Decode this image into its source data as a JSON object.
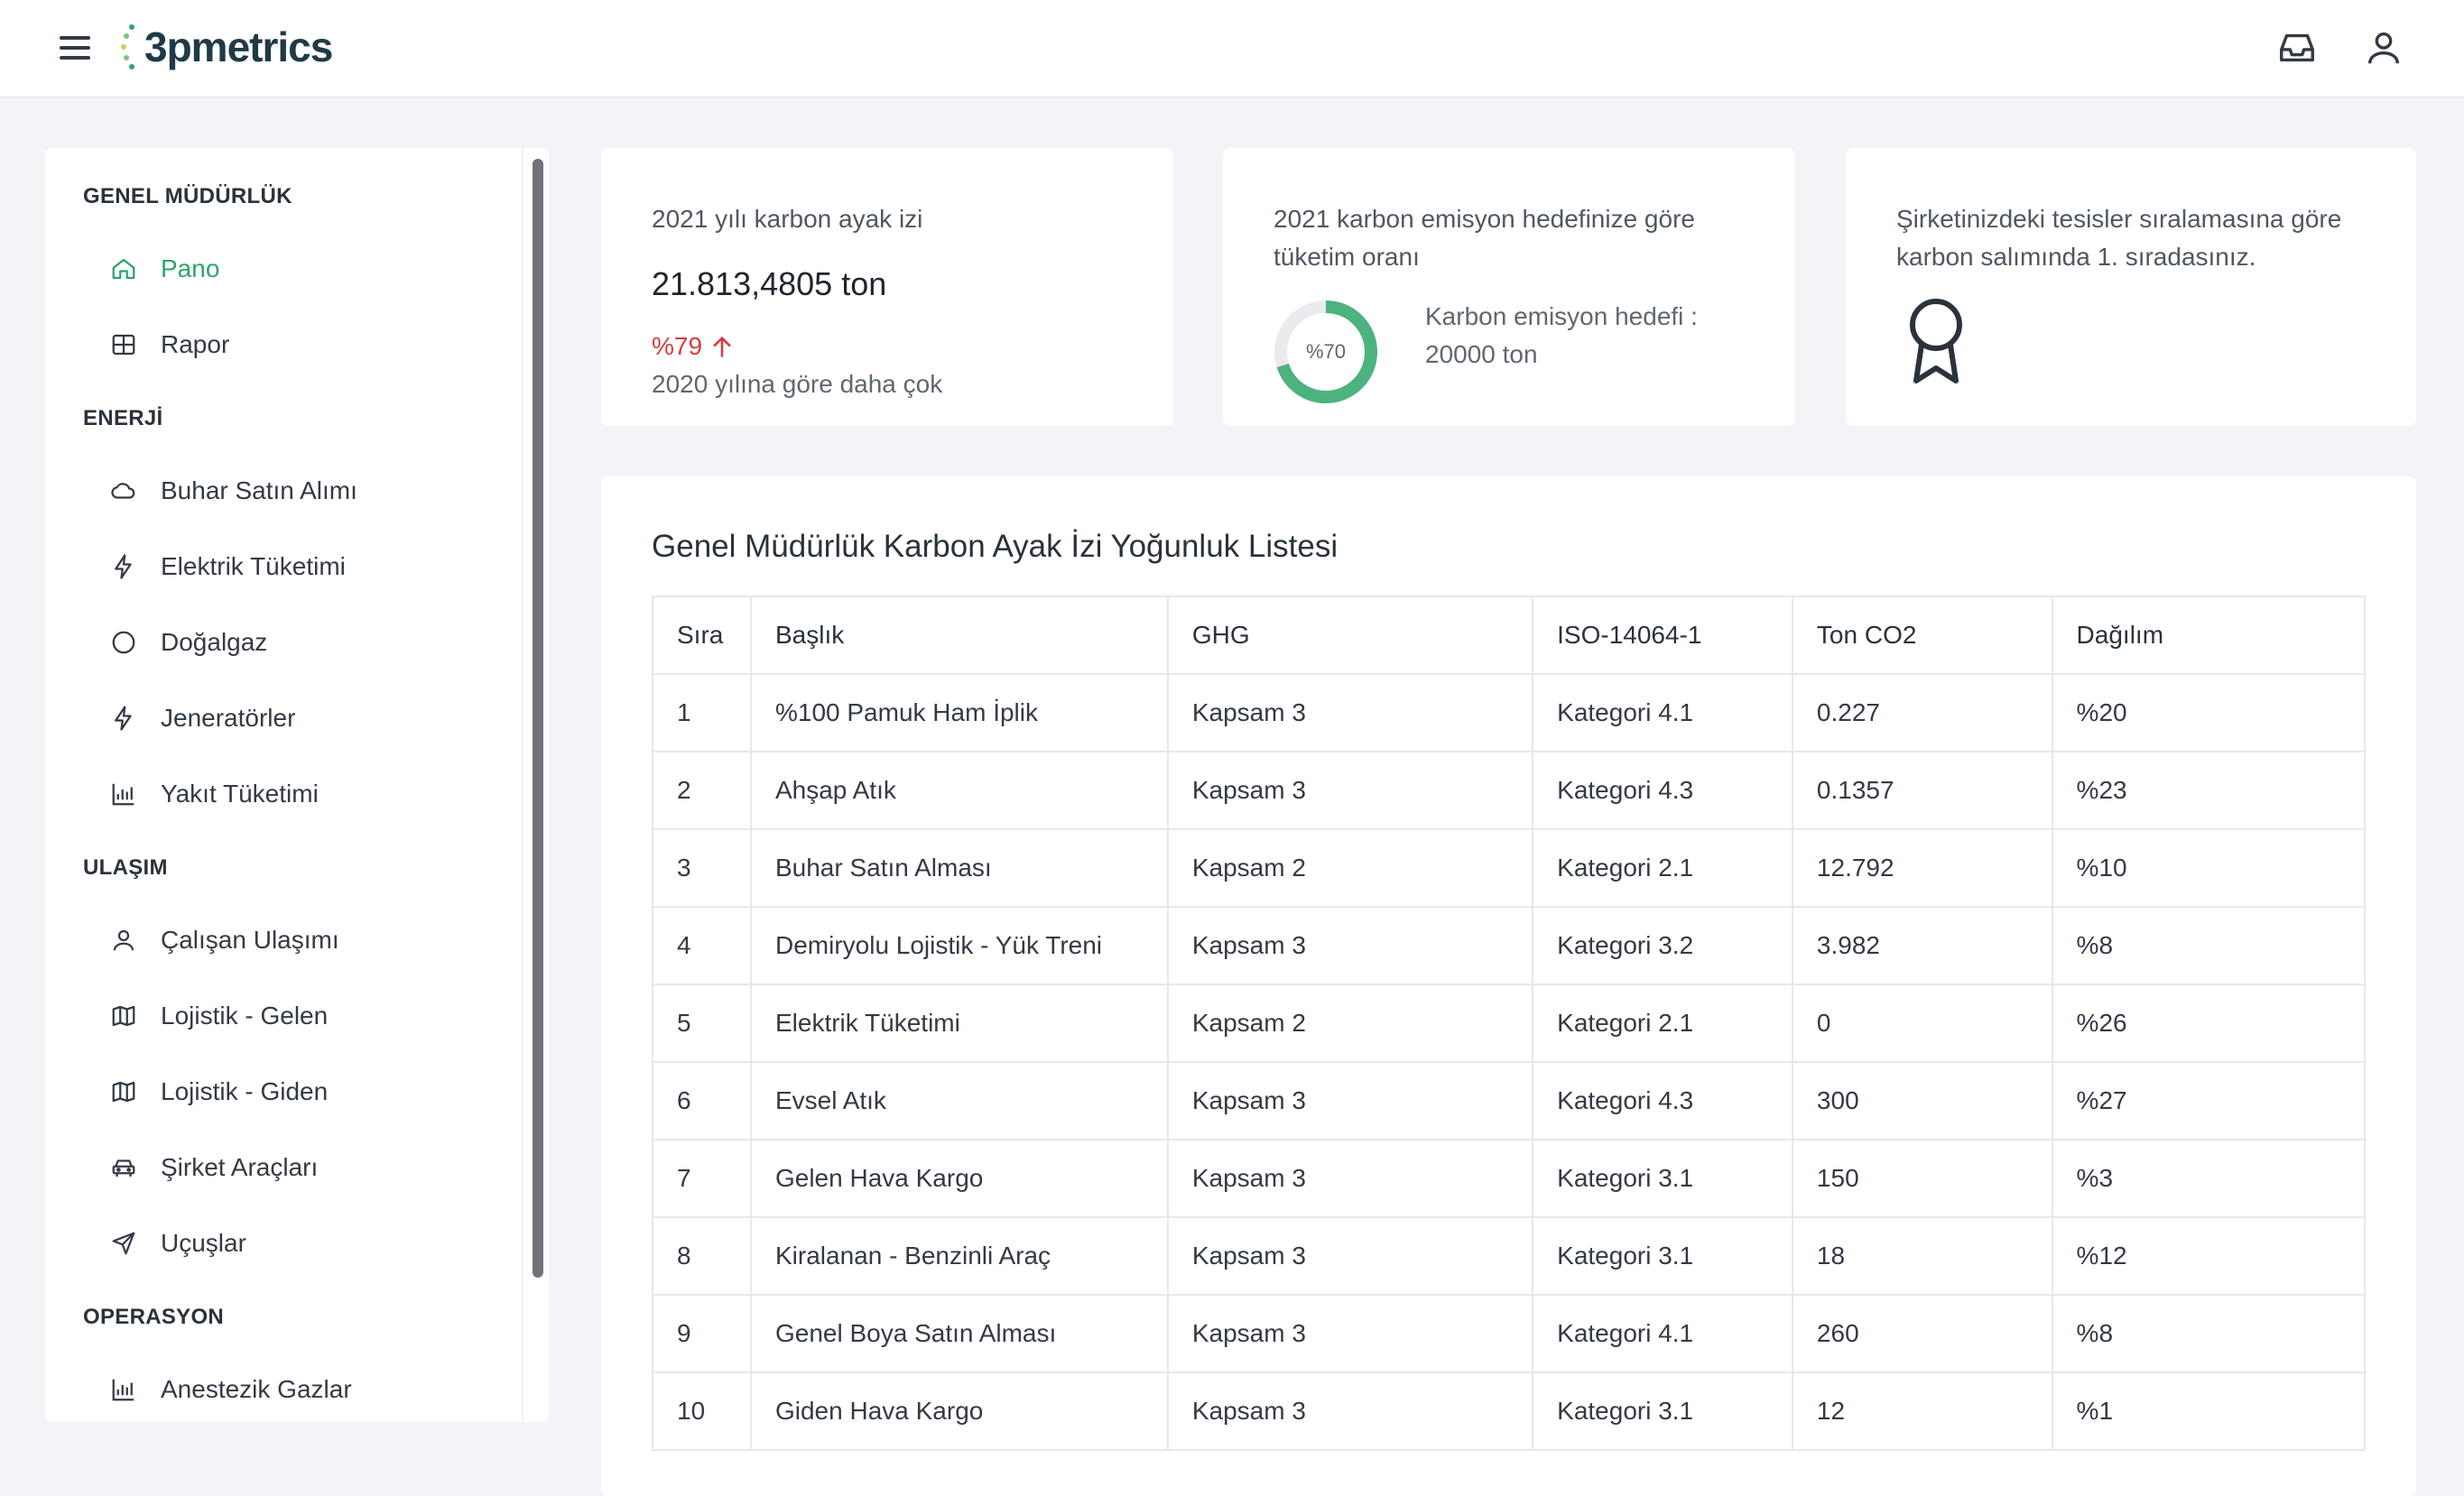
{
  "app": {
    "logo_text": "3pmetrics"
  },
  "header": {
    "menu_icon": "hamburger-icon",
    "inbox_icon": "inbox-icon",
    "user_icon": "user-icon"
  },
  "sidebar": {
    "sections": [
      {
        "title": "GENEL MÜDÜRLÜK",
        "items": [
          {
            "label": "Pano",
            "icon": "home-icon",
            "active": true
          },
          {
            "label": "Rapor",
            "icon": "table-icon"
          }
        ]
      },
      {
        "title": "ENERJİ",
        "items": [
          {
            "label": "Buhar Satın Alımı",
            "icon": "cloud-icon"
          },
          {
            "label": "Elektrik Tüketimi",
            "icon": "bolt-icon"
          },
          {
            "label": "Doğalgaz",
            "icon": "circle-icon"
          },
          {
            "label": "Jeneratörler",
            "icon": "bolt-icon"
          },
          {
            "label": "Yakıt Tüketimi",
            "icon": "bar-chart-icon"
          }
        ]
      },
      {
        "title": "ULAŞIM",
        "items": [
          {
            "label": "Çalışan Ulaşımı",
            "icon": "user-icon"
          },
          {
            "label": "Lojistik - Gelen",
            "icon": "map-icon"
          },
          {
            "label": "Lojistik - Giden",
            "icon": "map-icon"
          },
          {
            "label": "Şirket Araçları",
            "icon": "car-icon"
          },
          {
            "label": "Uçuşlar",
            "icon": "send-icon"
          }
        ]
      },
      {
        "title": "OPERASYON",
        "items": [
          {
            "label": "Anestezik Gazlar",
            "icon": "bar-chart-icon"
          }
        ]
      }
    ]
  },
  "cards": {
    "footprint": {
      "label": "2021 yılı karbon ayak izi",
      "value": "21.813,4805 ton",
      "change": "%79",
      "change_direction": "up",
      "change_color": "#d63b3b",
      "sub": "2020 yılına göre daha çok"
    },
    "target": {
      "label": "2021 karbon emisyon hedefinize göre tüketim oranı",
      "donut_label": "%70",
      "donut_fraction": 0.7,
      "donut_color": "#4cb27e",
      "target_label": "Karbon emisyon hedefi :",
      "target_value": "20000 ton"
    },
    "ranking": {
      "label": "Şirketinizdeki tesisler sıralamasına göre karbon salımında 1. sıradasınız.",
      "icon": "award-icon"
    }
  },
  "table": {
    "title": "Genel Müdürlük Karbon Ayak İzi Yoğunluk Listesi",
    "columns": [
      "Sıra",
      "Başlık",
      "GHG",
      "ISO-14064-1",
      "Ton CO2",
      "Dağılım"
    ],
    "rows": [
      [
        "1",
        "%100 Pamuk Ham İplik",
        "Kapsam 3",
        "Kategori 4.1",
        "0.227",
        "%20"
      ],
      [
        "2",
        "Ahşap Atık",
        "Kapsam 3",
        "Kategori 4.3",
        "0.1357",
        "%23"
      ],
      [
        "3",
        "Buhar Satın Alması",
        "Kapsam 2",
        "Kategori 2.1",
        "12.792",
        "%10"
      ],
      [
        "4",
        "Demiryolu Lojistik - Yük Treni",
        "Kapsam 3",
        "Kategori 3.2",
        "3.982",
        "%8"
      ],
      [
        "5",
        "Elektrik Tüketimi",
        "Kapsam 2",
        "Kategori 2.1",
        "0",
        "%26"
      ],
      [
        "6",
        "Evsel Atık",
        "Kapsam 3",
        "Kategori 4.3",
        "300",
        "%27"
      ],
      [
        "7",
        "Gelen Hava Kargo",
        "Kapsam 3",
        "Kategori 3.1",
        "150",
        "%3"
      ],
      [
        "8",
        "Kiralanan - Benzinli Araç",
        "Kapsam 3",
        "Kategori 3.1",
        "18",
        "%12"
      ],
      [
        "9",
        "Genel Boya Satın Alması",
        "Kapsam 3",
        "Kategori 4.1",
        "260",
        "%8"
      ],
      [
        "10",
        "Giden Hava Kargo",
        "Kapsam 3",
        "Kategori 3.1",
        "12",
        "%1"
      ]
    ]
  },
  "colors": {
    "accent": "#2fa36b",
    "danger": "#d63b3b",
    "background": "#f2f4f7"
  }
}
